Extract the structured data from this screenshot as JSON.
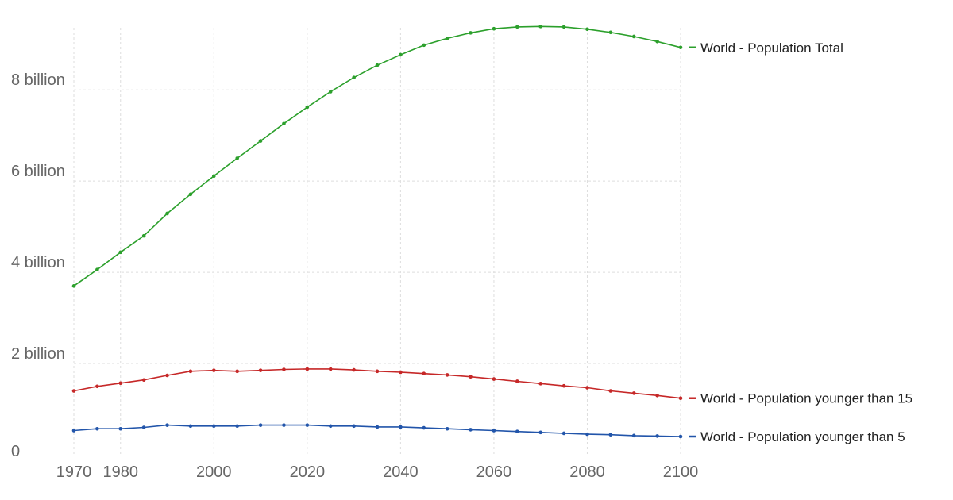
{
  "chart_data": {
    "type": "line",
    "x": [
      1970,
      1975,
      1980,
      1985,
      1990,
      1995,
      2000,
      2005,
      2010,
      2015,
      2020,
      2025,
      2030,
      2035,
      2040,
      2045,
      2050,
      2055,
      2060,
      2065,
      2070,
      2075,
      2080,
      2085,
      2090,
      2095,
      2100
    ],
    "series": [
      {
        "name": "World - Population Total",
        "color": "#2ca02c",
        "values": [
          3.7,
          4.06,
          4.44,
          4.8,
          5.29,
          5.71,
          6.11,
          6.5,
          6.88,
          7.26,
          7.62,
          7.96,
          8.27,
          8.54,
          8.77,
          8.98,
          9.13,
          9.25,
          9.34,
          9.38,
          9.39,
          9.38,
          9.33,
          9.26,
          9.17,
          9.06,
          8.93
        ]
      },
      {
        "name": "World - Population younger than 15",
        "color": "#c62828",
        "values": [
          1.4,
          1.5,
          1.57,
          1.64,
          1.74,
          1.83,
          1.85,
          1.83,
          1.85,
          1.87,
          1.88,
          1.88,
          1.86,
          1.83,
          1.81,
          1.78,
          1.75,
          1.71,
          1.66,
          1.61,
          1.56,
          1.51,
          1.47,
          1.4,
          1.35,
          1.3,
          1.24
        ]
      },
      {
        "name": "World - Population younger than 5",
        "color": "#2255aa",
        "values": [
          0.53,
          0.57,
          0.57,
          0.6,
          0.65,
          0.63,
          0.63,
          0.63,
          0.65,
          0.65,
          0.65,
          0.63,
          0.63,
          0.61,
          0.61,
          0.59,
          0.57,
          0.55,
          0.53,
          0.51,
          0.49,
          0.47,
          0.45,
          0.44,
          0.42,
          0.41,
          0.4
        ]
      }
    ],
    "x_ticks": [
      {
        "value": 1970,
        "label": "1970"
      },
      {
        "value": 1980,
        "label": "1980"
      },
      {
        "value": 2000,
        "label": "2000"
      },
      {
        "value": 2020,
        "label": "2020"
      },
      {
        "value": 2040,
        "label": "2040"
      },
      {
        "value": 2060,
        "label": "2060"
      },
      {
        "value": 2080,
        "label": "2080"
      },
      {
        "value": 2100,
        "label": "2100"
      }
    ],
    "y_ticks": [
      {
        "value": 0,
        "label": "0"
      },
      {
        "value": 2,
        "label": "2 billion"
      },
      {
        "value": 4,
        "label": "4 billion"
      },
      {
        "value": 6,
        "label": "6 billion"
      },
      {
        "value": 8,
        "label": "8 billion"
      }
    ],
    "xlim": [
      1970,
      2100
    ],
    "ylim": [
      0,
      9.5
    ],
    "grid": true,
    "legend": "right, inline at line ends"
  }
}
